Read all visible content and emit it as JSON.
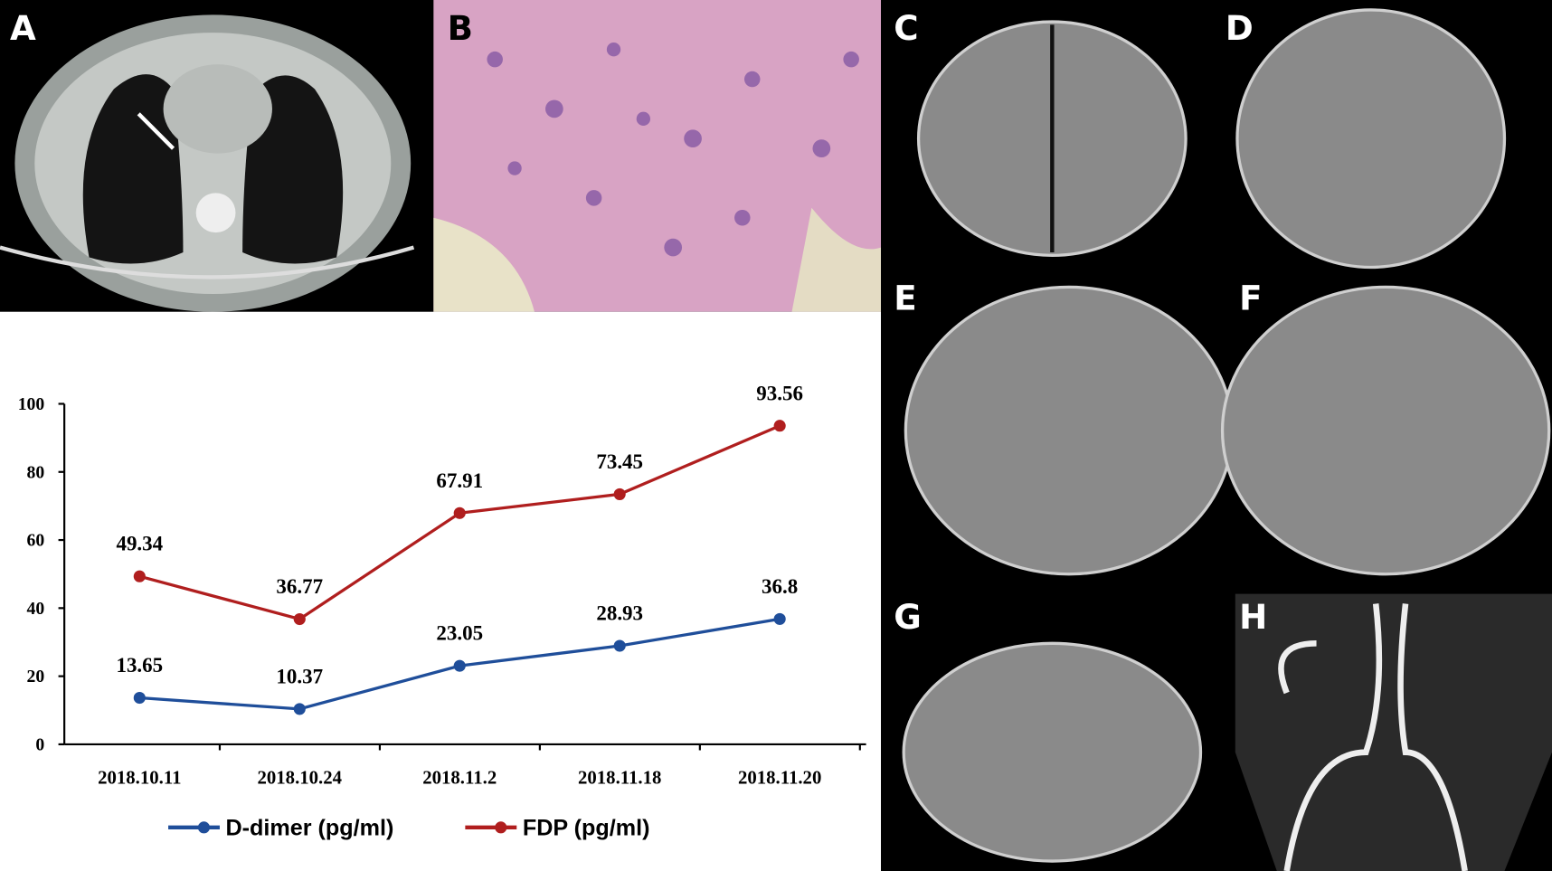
{
  "panel_labels": [
    "A",
    "B",
    "C",
    "D",
    "E",
    "F",
    "G",
    "H"
  ],
  "chart_data": {
    "type": "line",
    "categories": [
      "2018.10.11",
      "2018.10.24",
      "2018.11.2",
      "2018.11.18",
      "2018.11.20"
    ],
    "series": [
      {
        "name": "D-dimer (pg/ml)",
        "color": "#1f4e9a",
        "values": [
          13.65,
          10.37,
          23.05,
          28.93,
          36.8
        ]
      },
      {
        "name": "FDP (pg/ml)",
        "color": "#b01e1e",
        "values": [
          49.34,
          36.77,
          67.91,
          73.45,
          93.56
        ]
      }
    ],
    "ylim": [
      0,
      100
    ],
    "yticks": [
      0,
      20,
      40,
      60,
      80,
      100
    ],
    "grid": false,
    "legend": "bottom"
  }
}
